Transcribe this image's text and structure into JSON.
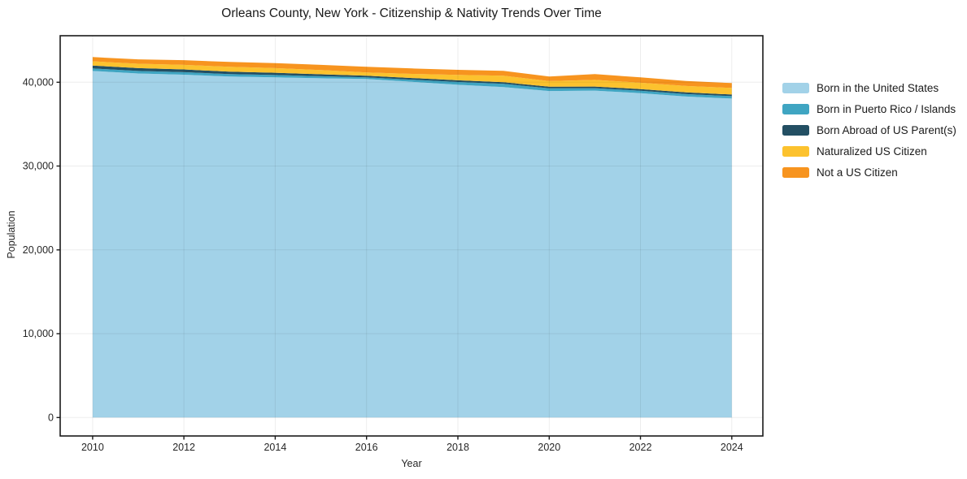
{
  "figure": {
    "title": "Orleans County, New York - Citizenship & Nativity Trends Over Time",
    "xlabel": "Year",
    "ylabel": "Population"
  },
  "chart_data": {
    "type": "area",
    "stacked": true,
    "title": "Orleans County, New York - Citizenship & Nativity Trends Over Time",
    "xlabel": "Year",
    "ylabel": "Population",
    "x": [
      2010,
      2011,
      2012,
      2013,
      2014,
      2015,
      2016,
      2017,
      2018,
      2019,
      2020,
      2021,
      2022,
      2023,
      2024
    ],
    "series": [
      {
        "name": "Born in the United States",
        "color": "#a2d2e8",
        "values": [
          41350,
          41050,
          40900,
          40680,
          40580,
          40470,
          40390,
          40050,
          39700,
          39420,
          38950,
          39000,
          38700,
          38300,
          38050
        ]
      },
      {
        "name": "Born in Puerto Rico / Islands",
        "color": "#3fa5c2",
        "values": [
          300,
          300,
          300,
          290,
          280,
          250,
          190,
          250,
          330,
          390,
          330,
          290,
          290,
          290,
          290
        ]
      },
      {
        "name": "Born Abroad of US Parent(s)",
        "color": "#234f63",
        "values": [
          350,
          340,
          330,
          290,
          270,
          230,
          200,
          200,
          200,
          190,
          200,
          200,
          200,
          200,
          200
        ]
      },
      {
        "name": "Naturalized US Citizen",
        "color": "#fcc22e",
        "values": [
          500,
          520,
          540,
          580,
          560,
          500,
          380,
          500,
          650,
          780,
          660,
          790,
          750,
          760,
          780
        ]
      },
      {
        "name": "Not a US Citizen",
        "color": "#f7941f",
        "values": [
          500,
          520,
          560,
          580,
          590,
          620,
          680,
          650,
          600,
          580,
          540,
          690,
          640,
          600,
          580
        ]
      }
    ],
    "totals": [
      43000,
      42730,
      42630,
      42420,
      42280,
      42070,
      41840,
      41650,
      41480,
      41360,
      40680,
      40970,
      40580,
      40150,
      39900
    ],
    "xticks": [
      2010,
      2012,
      2014,
      2016,
      2018,
      2020,
      2022,
      2024
    ],
    "xtick_labels": [
      "2010",
      "2012",
      "2014",
      "2016",
      "2018",
      "2020",
      "2022",
      "2024"
    ],
    "yticks": [
      0,
      10000,
      20000,
      30000,
      40000
    ],
    "ytick_labels": [
      "0",
      "10,000",
      "20,000",
      "30,000",
      "40,000"
    ],
    "xlim": [
      2009.29,
      2024.68
    ],
    "ylim": [
      -2200,
      45550
    ],
    "grid": true,
    "legend_position": "right"
  }
}
